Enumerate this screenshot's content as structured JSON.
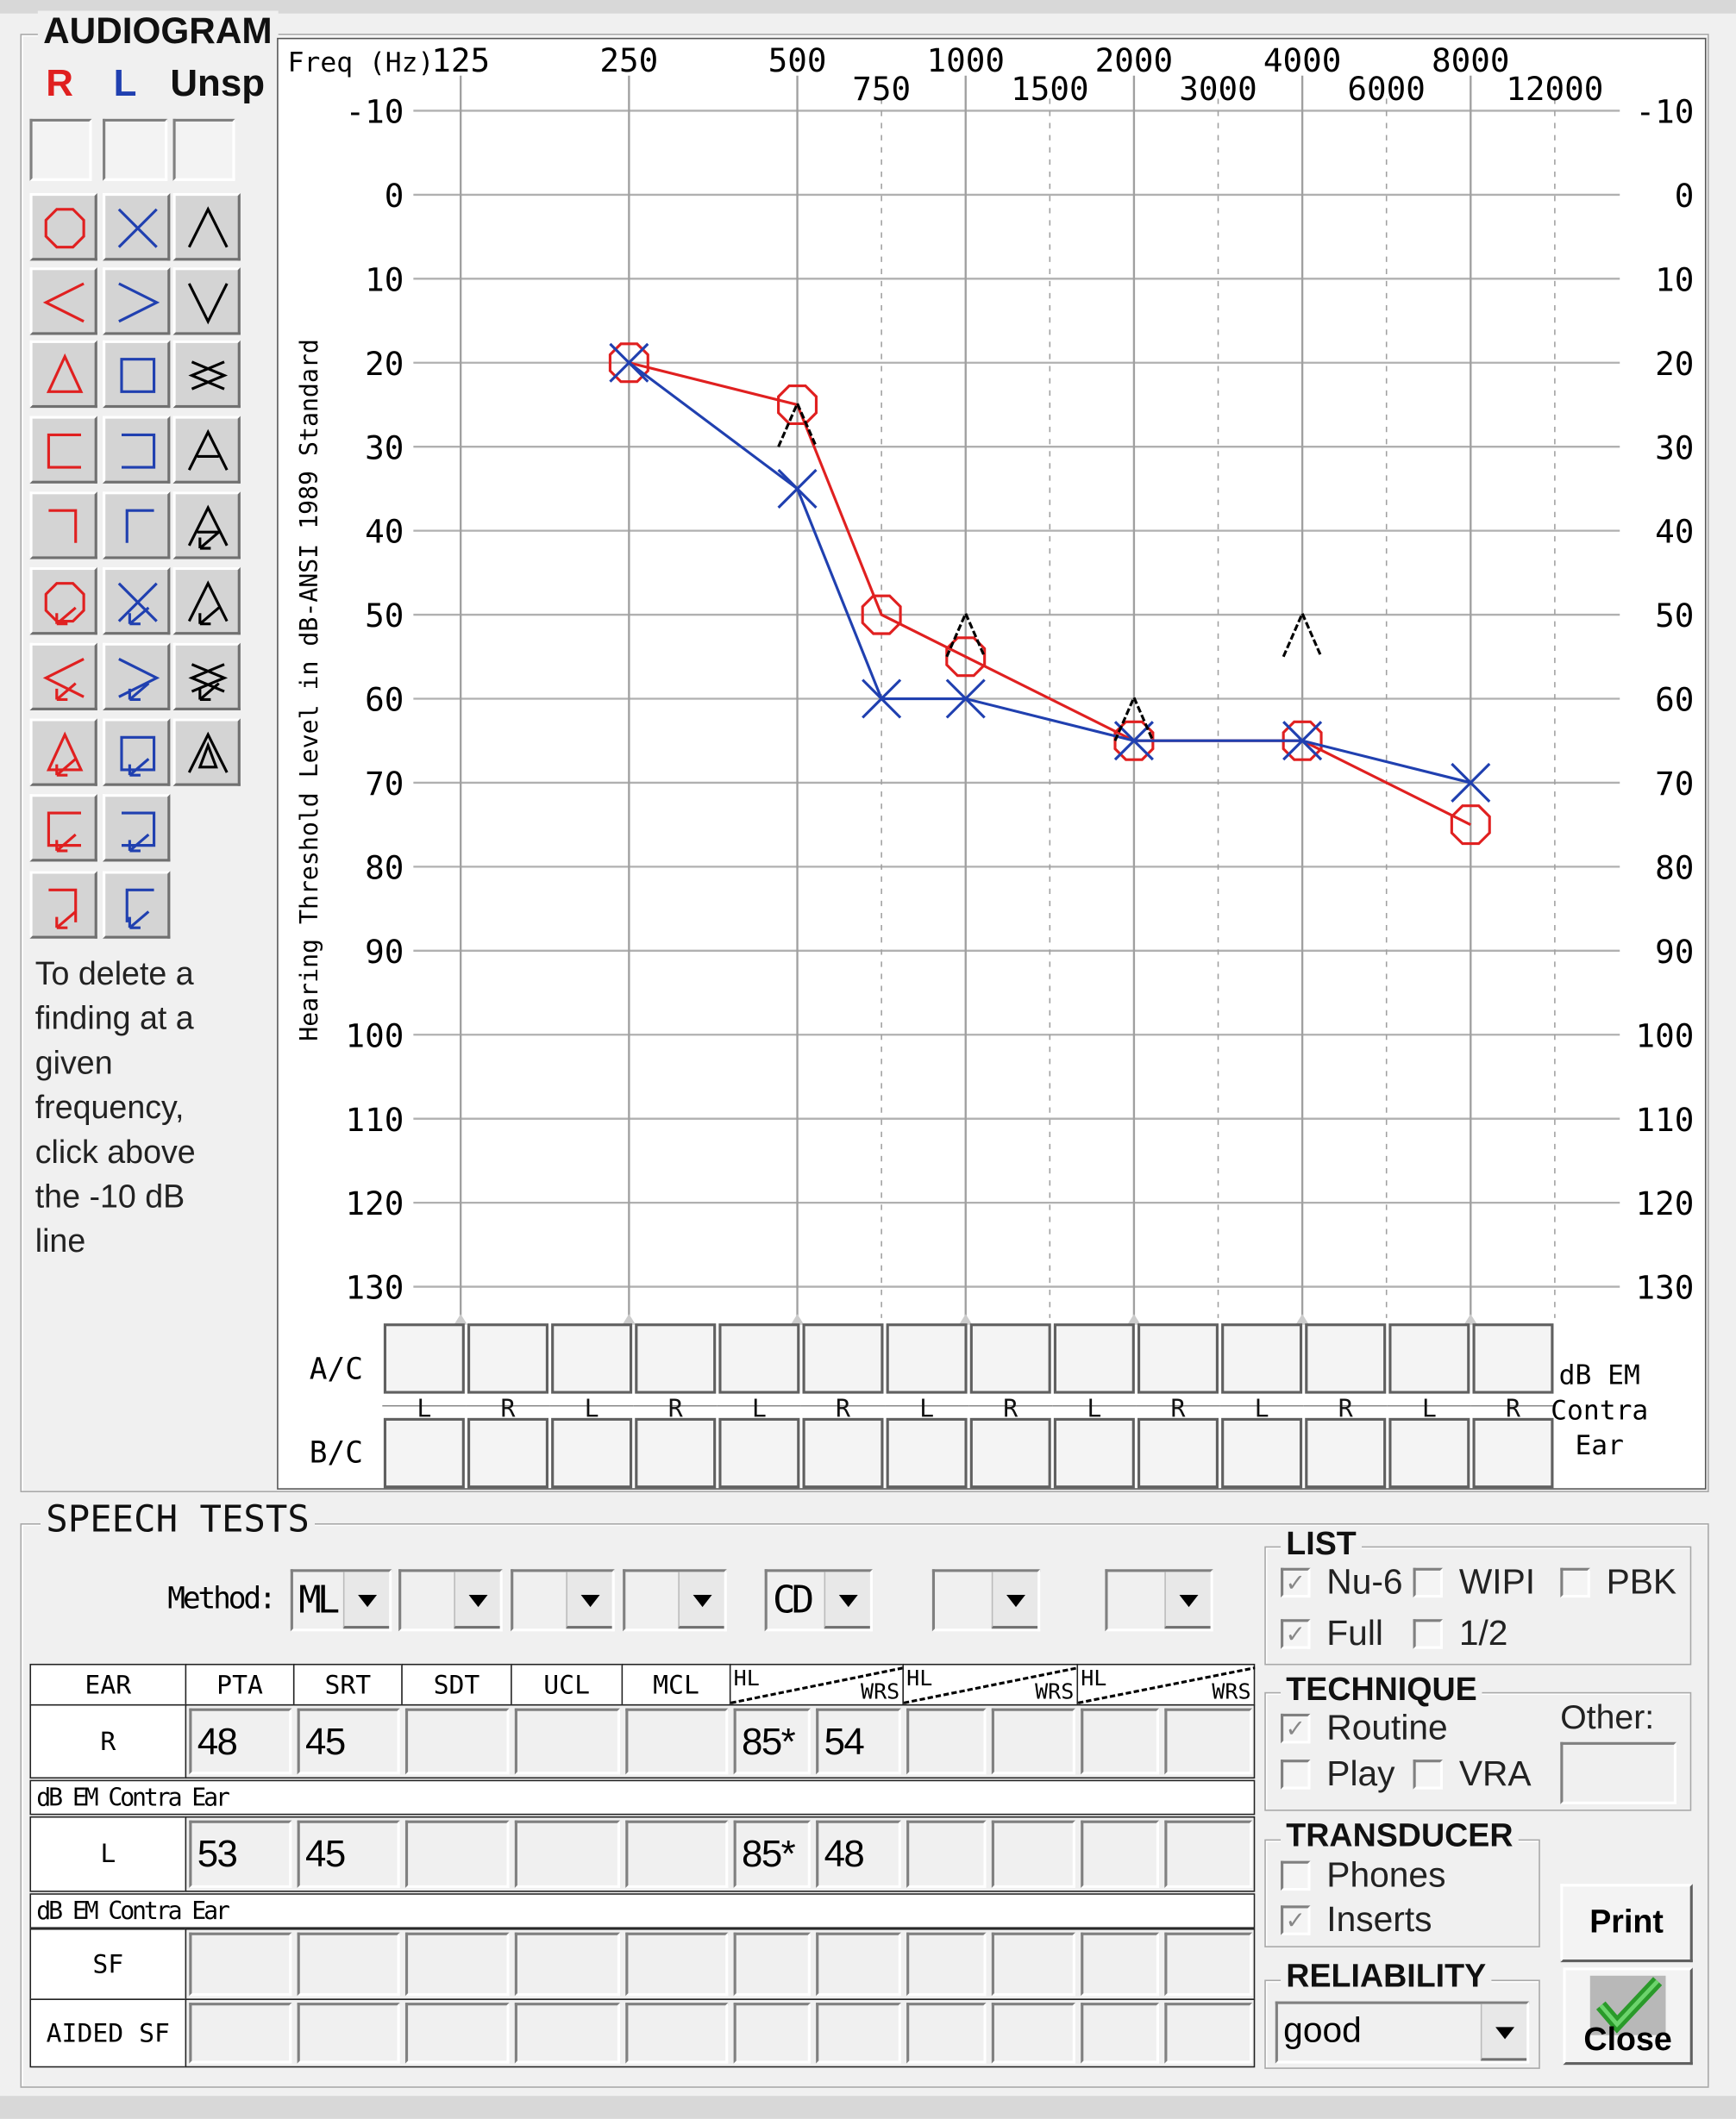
{
  "audiogram": {
    "title": "AUDIOGRAM",
    "ear_labels": {
      "r": "R",
      "l": "L",
      "unsp": "Unsp"
    },
    "palette": {
      "r": [
        "circle",
        "less-than",
        "triangle",
        "bracket-left",
        "corner-right",
        "circle-arrow",
        "less-than-arrow",
        "triangle-arrow",
        "bracket-left-arrow",
        "corner-right-arrow"
      ],
      "l": [
        "x",
        "greater-than",
        "square",
        "bracket-right",
        "corner-left",
        "x-arrow",
        "greater-than-arrow",
        "square-arrow",
        "bracket-right-arrow",
        "corner-left-arrow"
      ],
      "unsp": [
        "caret-up",
        "caret-down",
        "s",
        "a",
        "a-arrow",
        "v-arrow",
        "s-arrow",
        "a-triangle"
      ]
    },
    "help_lines": [
      "To delete a",
      "finding at a",
      "given",
      "frequency,",
      "click above",
      "the -10 dB",
      "line"
    ],
    "freq_label": "Freq (Hz)",
    "y_axis_title": "Hearing Threshold Level in dB-ANSI 1989 Standard",
    "masking": {
      "ac_label": "A/C",
      "bc_label": "B/C",
      "ear_row": [
        "L",
        "R",
        "L",
        "R",
        "L",
        "R",
        "L",
        "R",
        "L",
        "R",
        "L",
        "R",
        "L",
        "R"
      ],
      "contra_label": [
        "dB EM",
        "Contra",
        "Ear"
      ]
    }
  },
  "chart_data": {
    "type": "line",
    "x_scale": "log",
    "octave_ticks": [
      "125",
      "250",
      "500",
      "1000",
      "2000",
      "4000",
      "8000"
    ],
    "interoctave_ticks": [
      "750",
      "1500",
      "3000",
      "6000",
      "12000"
    ],
    "y_ticks": [
      -10,
      0,
      10,
      20,
      30,
      40,
      50,
      60,
      70,
      80,
      90,
      100,
      110,
      120,
      130
    ],
    "ylim": [
      -10,
      130
    ],
    "y_inverted": true,
    "grid": true,
    "colors": {
      "right": "#e02020",
      "left": "#2040b0",
      "unspecified": "#000000"
    },
    "series": [
      {
        "ear": "R",
        "symbol": "circle",
        "connected": true,
        "x": [
          250,
          500,
          750,
          1000,
          2000,
          4000,
          8000
        ],
        "y": [
          20,
          25,
          50,
          55,
          65,
          65,
          75
        ]
      },
      {
        "ear": "L",
        "symbol": "x",
        "connected": true,
        "x": [
          250,
          500,
          750,
          1000,
          2000,
          4000,
          8000
        ],
        "y": [
          20,
          35,
          60,
          60,
          65,
          65,
          70
        ]
      },
      {
        "ear": "Unsp",
        "symbol": "caret-up",
        "connected": false,
        "x": [
          500,
          1000,
          2000,
          4000
        ],
        "y": [
          30,
          55,
          65,
          55
        ]
      }
    ]
  },
  "speech": {
    "title": "SPEECH TESTS",
    "method_label": "Method:",
    "dropdowns": [
      "ML",
      "",
      "",
      "",
      "CD",
      "",
      ""
    ],
    "headers": [
      "EAR",
      "PTA",
      "SRT",
      "SDT",
      "UCL",
      "MCL"
    ],
    "hl_label": "HL",
    "wrs_label": "WRS",
    "rows": [
      {
        "ear": "R",
        "values": [
          "48",
          "45",
          "",
          "",
          "",
          "85*",
          "54",
          "",
          "",
          "",
          ""
        ]
      },
      {
        "ear": "L",
        "values": [
          "53",
          "45",
          "",
          "",
          "",
          "85*",
          "48",
          "",
          "",
          "",
          ""
        ]
      },
      {
        "ear": "SF",
        "values": [
          "",
          "",
          "",
          "",
          "",
          "",
          "",
          "",
          "",
          "",
          ""
        ]
      },
      {
        "ear": "AIDED SF",
        "values": [
          "",
          "",
          "",
          "",
          "",
          "",
          "",
          "",
          "",
          "",
          ""
        ]
      }
    ],
    "contra_label": "dB EM Contra Ear"
  },
  "list": {
    "title": "LIST",
    "options": [
      {
        "label": "Nu-6",
        "checked": true
      },
      {
        "label": "WIPI",
        "checked": false
      },
      {
        "label": "PBK",
        "checked": false
      },
      {
        "label": "Full",
        "checked": true
      },
      {
        "label": "1/2",
        "checked": false
      }
    ]
  },
  "technique": {
    "title": "TECHNIQUE",
    "options": [
      {
        "label": "Routine",
        "checked": true
      },
      {
        "label": "Play",
        "checked": false
      },
      {
        "label": "VRA",
        "checked": false
      }
    ],
    "other_label": "Other:",
    "other_value": ""
  },
  "transducer": {
    "title": "TRANSDUCER",
    "options": [
      {
        "label": "Phones",
        "checked": false
      },
      {
        "label": "Inserts",
        "checked": true
      }
    ]
  },
  "reliability": {
    "title": "RELIABILITY",
    "value": "good"
  },
  "buttons": {
    "print": "Print",
    "close": "Close"
  }
}
